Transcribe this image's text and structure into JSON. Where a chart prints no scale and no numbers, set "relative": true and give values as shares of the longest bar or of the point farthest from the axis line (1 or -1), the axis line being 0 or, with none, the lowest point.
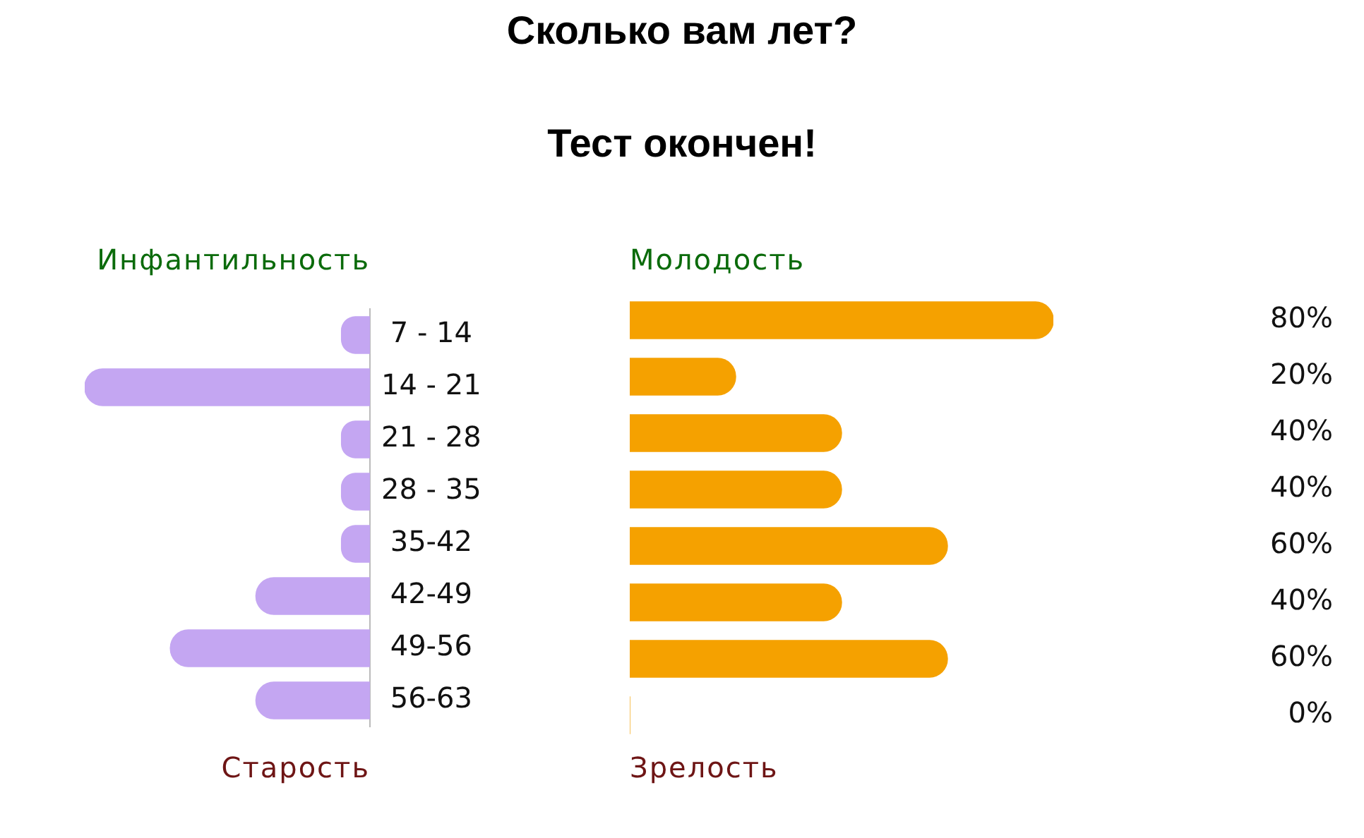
{
  "chart_data": [
    {
      "type": "bar",
      "orientation": "horizontal",
      "relative": true,
      "categories": [
        "7 - 14",
        "14 - 21",
        "21 - 28",
        "28 - 35",
        "35-42",
        "42-49",
        "49-56",
        "56-63"
      ],
      "values": [
        0.1,
        1,
        0.1,
        0.1,
        0.1,
        0.4,
        0.7,
        0.4
      ],
      "color": "#c4a6f2",
      "annotations": [
        "Инфантильность",
        "Старость"
      ]
    },
    {
      "type": "bar",
      "orientation": "horizontal",
      "title": "Сколько вам лет?",
      "subtitle": "Тест окончен!",
      "categories": [
        null,
        null,
        null,
        null,
        null,
        null,
        null,
        null
      ],
      "values": [
        80,
        20,
        40,
        40,
        60,
        40,
        60,
        0
      ],
      "value_labels": [
        "80%",
        "20%",
        "40%",
        "40%",
        "60%",
        "40%",
        "60%",
        "0%"
      ],
      "color": "#f5a100",
      "annotations": [
        "Молодость",
        "Зрелость"
      ]
    }
  ]
}
